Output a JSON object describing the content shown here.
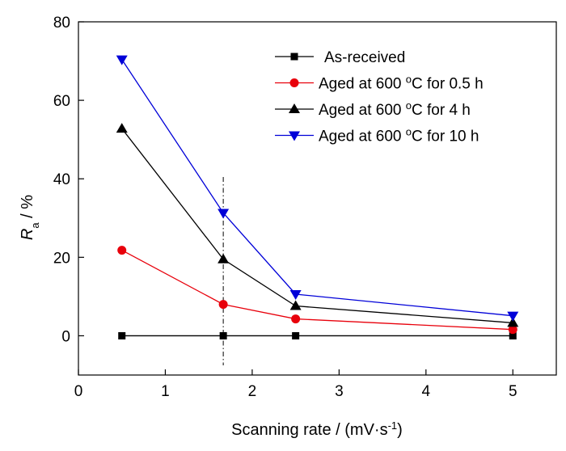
{
  "chart_data": {
    "type": "line",
    "xlabel_main": "Scanning rate / (mV·s",
    "xlabel_sup": "-1",
    "xlabel_end": ")",
    "ylabel_main": "R",
    "ylabel_sub": "a",
    "ylabel_end": " / %",
    "xlim": [
      0,
      5.5
    ],
    "ylim": [
      -10,
      80
    ],
    "xticks": [
      0,
      1,
      2,
      3,
      4,
      5
    ],
    "yticks": [
      0,
      20,
      40,
      60,
      80
    ],
    "x": [
      0.5,
      1.667,
      2.5,
      5
    ],
    "reference_line_x": 1.667,
    "legend_position": "top-right",
    "grid": false,
    "series": [
      {
        "name_main": "As-received",
        "name_sup": "",
        "name_end": "",
        "marker": "square",
        "color": "#000000",
        "values": [
          0,
          0,
          0,
          0
        ]
      },
      {
        "name_main": "Aged at 600 ",
        "name_sup": "o",
        "name_end": "C for 0.5 h",
        "marker": "circle",
        "color": "#e8000b",
        "values": [
          21.8,
          8.0,
          4.3,
          1.6
        ]
      },
      {
        "name_main": "Aged at 600 ",
        "name_sup": "o",
        "name_end": "C for 4 h",
        "marker": "triangle-up",
        "color": "#000000",
        "values": [
          52.8,
          19.5,
          7.6,
          3.3
        ]
      },
      {
        "name_main": "Aged at 600 ",
        "name_sup": "o",
        "name_end": "C for 10 h",
        "marker": "triangle-down",
        "color": "#0000d8",
        "values": [
          70.4,
          31.3,
          10.6,
          5.1
        ]
      }
    ]
  }
}
